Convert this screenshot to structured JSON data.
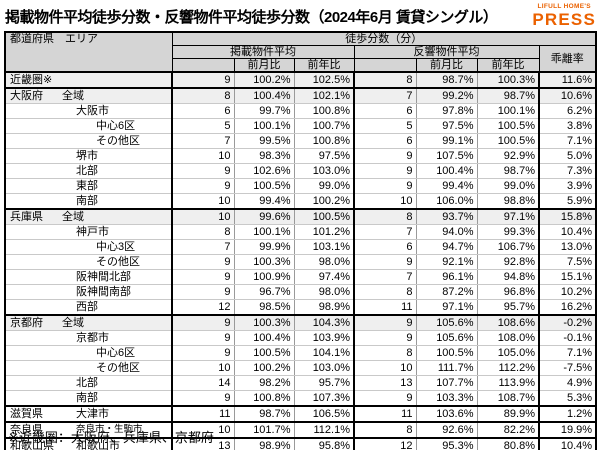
{
  "title": "掲載物件平均徒歩分数・反響物件平均徒歩分数（2024年6月 賃貸シングル）",
  "logo": {
    "line1": "LIFULL HOME'S",
    "line2": "PRESS",
    "color": "#EB6100"
  },
  "footnote": "※近畿圏：大阪府、兵庫県、京都府",
  "chart_data": {
    "type": "table",
    "title": "掲載物件平均徒歩分数・反響物件平均徒歩分数（2024年6月 賃貸シングル）",
    "header": {
      "pref_area": "都道府県　エリア",
      "group": "徒歩分数（分）",
      "listed": "掲載物件平均",
      "response": "反響物件平均",
      "mom": "前月比",
      "yoy": "前年比",
      "divergence": "乖離率"
    },
    "rows": [
      {
        "pref": "近畿圏※",
        "area": "",
        "indent": 0,
        "group_start": true,
        "shaded": true,
        "listed": "9",
        "listed_mom": "100.2%",
        "listed_yoy": "102.5%",
        "resp": "8",
        "resp_mom": "98.7%",
        "resp_yoy": "100.3%",
        "div": "11.6%"
      },
      {
        "pref": "大阪府",
        "area": "全域",
        "indent": 1,
        "group_start": true,
        "shaded": true,
        "listed": "8",
        "listed_mom": "100.4%",
        "listed_yoy": "102.1%",
        "resp": "7",
        "resp_mom": "99.2%",
        "resp_yoy": "98.7%",
        "div": "10.6%"
      },
      {
        "pref": "",
        "area": "大阪市",
        "indent": 2,
        "group_start": false,
        "shaded": false,
        "listed": "6",
        "listed_mom": "99.7%",
        "listed_yoy": "100.8%",
        "resp": "6",
        "resp_mom": "97.8%",
        "resp_yoy": "100.1%",
        "div": "6.2%"
      },
      {
        "pref": "",
        "area": "中心6区",
        "indent": 3,
        "group_start": false,
        "shaded": false,
        "listed": "5",
        "listed_mom": "100.1%",
        "listed_yoy": "100.7%",
        "resp": "5",
        "resp_mom": "97.5%",
        "resp_yoy": "100.5%",
        "div": "3.8%"
      },
      {
        "pref": "",
        "area": "その他区",
        "indent": 3,
        "group_start": false,
        "shaded": false,
        "listed": "7",
        "listed_mom": "99.5%",
        "listed_yoy": "100.8%",
        "resp": "6",
        "resp_mom": "99.1%",
        "resp_yoy": "100.5%",
        "div": "7.1%"
      },
      {
        "pref": "",
        "area": "堺市",
        "indent": 2,
        "group_start": false,
        "shaded": false,
        "listed": "10",
        "listed_mom": "98.3%",
        "listed_yoy": "97.5%",
        "resp": "9",
        "resp_mom": "107.5%",
        "resp_yoy": "92.9%",
        "div": "5.0%"
      },
      {
        "pref": "",
        "area": "北部",
        "indent": 2,
        "group_start": false,
        "shaded": false,
        "listed": "9",
        "listed_mom": "102.6%",
        "listed_yoy": "103.0%",
        "resp": "9",
        "resp_mom": "100.4%",
        "resp_yoy": "98.7%",
        "div": "7.3%"
      },
      {
        "pref": "",
        "area": "東部",
        "indent": 2,
        "group_start": false,
        "shaded": false,
        "listed": "9",
        "listed_mom": "100.5%",
        "listed_yoy": "99.0%",
        "resp": "9",
        "resp_mom": "99.4%",
        "resp_yoy": "99.0%",
        "div": "3.9%"
      },
      {
        "pref": "",
        "area": "南部",
        "indent": 2,
        "group_start": false,
        "shaded": false,
        "listed": "10",
        "listed_mom": "99.4%",
        "listed_yoy": "100.2%",
        "resp": "10",
        "resp_mom": "106.0%",
        "resp_yoy": "98.8%",
        "div": "5.9%"
      },
      {
        "pref": "兵庫県",
        "area": "全域",
        "indent": 1,
        "group_start": true,
        "shaded": true,
        "listed": "10",
        "listed_mom": "99.6%",
        "listed_yoy": "100.5%",
        "resp": "8",
        "resp_mom": "93.7%",
        "resp_yoy": "97.1%",
        "div": "15.8%"
      },
      {
        "pref": "",
        "area": "神戸市",
        "indent": 2,
        "group_start": false,
        "shaded": false,
        "listed": "8",
        "listed_mom": "100.1%",
        "listed_yoy": "101.2%",
        "resp": "7",
        "resp_mom": "94.0%",
        "resp_yoy": "99.3%",
        "div": "10.4%"
      },
      {
        "pref": "",
        "area": "中心3区",
        "indent": 3,
        "group_start": false,
        "shaded": false,
        "listed": "7",
        "listed_mom": "99.9%",
        "listed_yoy": "103.1%",
        "resp": "6",
        "resp_mom": "94.7%",
        "resp_yoy": "106.7%",
        "div": "13.0%"
      },
      {
        "pref": "",
        "area": "その他区",
        "indent": 3,
        "group_start": false,
        "shaded": false,
        "listed": "9",
        "listed_mom": "100.3%",
        "listed_yoy": "98.0%",
        "resp": "9",
        "resp_mom": "92.1%",
        "resp_yoy": "92.8%",
        "div": "7.5%"
      },
      {
        "pref": "",
        "area": "阪神間北部",
        "indent": 2,
        "group_start": false,
        "shaded": false,
        "listed": "9",
        "listed_mom": "100.9%",
        "listed_yoy": "97.4%",
        "resp": "7",
        "resp_mom": "96.1%",
        "resp_yoy": "94.8%",
        "div": "15.1%"
      },
      {
        "pref": "",
        "area": "阪神間南部",
        "indent": 2,
        "group_start": false,
        "shaded": false,
        "listed": "9",
        "listed_mom": "96.7%",
        "listed_yoy": "98.0%",
        "resp": "8",
        "resp_mom": "87.2%",
        "resp_yoy": "96.8%",
        "div": "10.2%"
      },
      {
        "pref": "",
        "area": "西部",
        "indent": 2,
        "group_start": false,
        "shaded": false,
        "listed": "12",
        "listed_mom": "98.5%",
        "listed_yoy": "98.9%",
        "resp": "11",
        "resp_mom": "97.1%",
        "resp_yoy": "95.7%",
        "div": "16.2%"
      },
      {
        "pref": "京都府",
        "area": "全域",
        "indent": 1,
        "group_start": true,
        "shaded": true,
        "listed": "9",
        "listed_mom": "100.3%",
        "listed_yoy": "104.3%",
        "resp": "9",
        "resp_mom": "105.6%",
        "resp_yoy": "108.6%",
        "div": "-0.2%"
      },
      {
        "pref": "",
        "area": "京都市",
        "indent": 2,
        "group_start": false,
        "shaded": false,
        "listed": "9",
        "listed_mom": "100.4%",
        "listed_yoy": "103.9%",
        "resp": "9",
        "resp_mom": "105.6%",
        "resp_yoy": "108.0%",
        "div": "-0.1%"
      },
      {
        "pref": "",
        "area": "中心6区",
        "indent": 3,
        "group_start": false,
        "shaded": false,
        "listed": "9",
        "listed_mom": "100.5%",
        "listed_yoy": "104.1%",
        "resp": "8",
        "resp_mom": "100.5%",
        "resp_yoy": "105.0%",
        "div": "7.1%"
      },
      {
        "pref": "",
        "area": "その他区",
        "indent": 3,
        "group_start": false,
        "shaded": false,
        "listed": "10",
        "listed_mom": "100.2%",
        "listed_yoy": "103.0%",
        "resp": "10",
        "resp_mom": "111.7%",
        "resp_yoy": "112.2%",
        "div": "-7.5%"
      },
      {
        "pref": "",
        "area": "北部",
        "indent": 2,
        "group_start": false,
        "shaded": false,
        "listed": "14",
        "listed_mom": "98.2%",
        "listed_yoy": "95.7%",
        "resp": "13",
        "resp_mom": "107.7%",
        "resp_yoy": "113.9%",
        "div": "4.9%"
      },
      {
        "pref": "",
        "area": "南部",
        "indent": 2,
        "group_start": false,
        "shaded": false,
        "listed": "9",
        "listed_mom": "100.8%",
        "listed_yoy": "107.3%",
        "resp": "9",
        "resp_mom": "103.3%",
        "resp_yoy": "108.7%",
        "div": "5.3%"
      },
      {
        "pref": "滋賀県",
        "area": "大津市",
        "indent": 2,
        "group_start": true,
        "shaded": false,
        "listed": "11",
        "listed_mom": "98.7%",
        "listed_yoy": "106.5%",
        "resp": "11",
        "resp_mom": "103.6%",
        "resp_yoy": "89.9%",
        "div": "1.2%"
      },
      {
        "pref": "奈良県",
        "area": "奈良市・生駒市",
        "indent": 2,
        "group_start": true,
        "shaded": false,
        "listed": "10",
        "listed_mom": "101.7%",
        "listed_yoy": "112.1%",
        "resp": "8",
        "resp_mom": "92.6%",
        "resp_yoy": "82.2%",
        "div": "19.9%"
      },
      {
        "pref": "和歌山県",
        "area": "和歌山市",
        "indent": 2,
        "group_start": true,
        "shaded": false,
        "listed": "13",
        "listed_mom": "98.9%",
        "listed_yoy": "95.8%",
        "resp": "12",
        "resp_mom": "95.3%",
        "resp_yoy": "80.8%",
        "div": "10.4%"
      }
    ]
  }
}
